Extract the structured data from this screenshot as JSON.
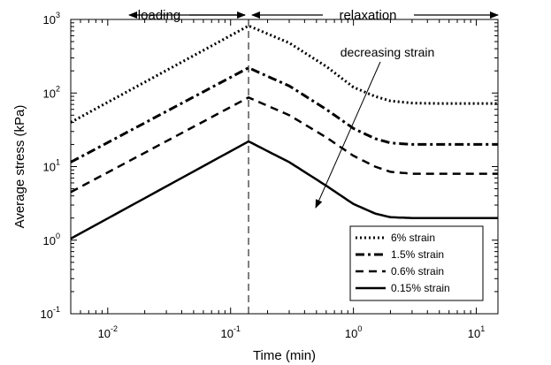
{
  "chart_data": {
    "type": "line",
    "xlabel": "Time (min)",
    "ylabel": "Average stress (kPa)",
    "xscale": "log",
    "yscale": "log",
    "xlim": [
      0.005,
      15
    ],
    "ylim": [
      0.1,
      1000
    ],
    "x_ticks": [
      {
        "base": "10",
        "exp": "-2",
        "value": 0.01
      },
      {
        "base": "10",
        "exp": "-1",
        "value": 0.1
      },
      {
        "base": "10",
        "exp": "0",
        "value": 1
      },
      {
        "base": "10",
        "exp": "1",
        "value": 10
      }
    ],
    "y_ticks": [
      {
        "base": "10",
        "exp": "-1",
        "value": 0.1
      },
      {
        "base": "10",
        "exp": "0",
        "value": 1
      },
      {
        "base": "10",
        "exp": "1",
        "value": 10
      },
      {
        "base": "10",
        "exp": "2",
        "value": 100
      },
      {
        "base": "10",
        "exp": "3",
        "value": 1000
      }
    ],
    "grid": false,
    "legend_position": "bottom-right",
    "loading_end_time": 0.14,
    "phase_labels": {
      "loading": "loading",
      "relaxation": "relaxation"
    },
    "annotation": "decreasing strain",
    "series": [
      {
        "name": "6% strain",
        "style": "dotted",
        "x": [
          0.005,
          0.14,
          0.3,
          0.6,
          1.0,
          1.5,
          2.0,
          3.0,
          5.0,
          15
        ],
        "y": [
          40,
          820,
          480,
          230,
          120,
          90,
          78,
          73,
          72,
          72
        ]
      },
      {
        "name": "1.5% strain",
        "style": "dash-dot",
        "x": [
          0.005,
          0.14,
          0.3,
          0.6,
          1.0,
          1.5,
          2.0,
          3.0,
          5.0,
          15
        ],
        "y": [
          11.5,
          220,
          125,
          60,
          33,
          24,
          21,
          20,
          20,
          20
        ]
      },
      {
        "name": "0.6% strain",
        "style": "dashed",
        "x": [
          0.005,
          0.14,
          0.3,
          0.6,
          1.0,
          1.5,
          2.0,
          3.0,
          5.0,
          15
        ],
        "y": [
          4.5,
          87,
          50,
          25,
          14,
          10,
          8.5,
          8,
          8,
          8
        ]
      },
      {
        "name": "0.15% strain",
        "style": "solid",
        "x": [
          0.005,
          0.14,
          0.3,
          0.6,
          1.0,
          1.5,
          2.0,
          3.0,
          5.0,
          15
        ],
        "y": [
          1.05,
          22,
          11.5,
          5.5,
          3.1,
          2.3,
          2.05,
          2.0,
          2.0,
          2.0
        ]
      }
    ]
  }
}
